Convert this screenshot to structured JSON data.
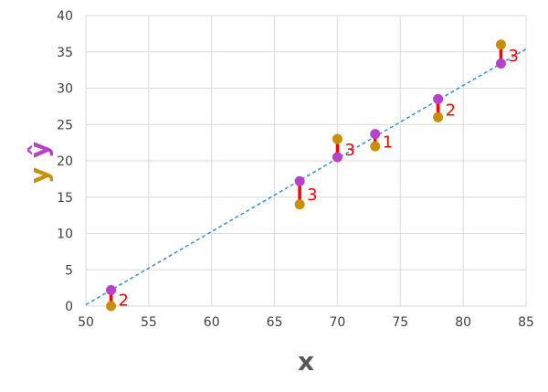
{
  "chart_data": {
    "type": "scatter",
    "xlabel": "x",
    "ylabel_parts": [
      {
        "text": "y",
        "color": "#C8900A"
      },
      {
        "text": "ŷ",
        "color": "#B940C8"
      }
    ],
    "xlim": [
      50,
      85
    ],
    "ylim": [
      0,
      40
    ],
    "xticks": [
      50,
      55,
      60,
      65,
      70,
      75,
      80,
      85
    ],
    "yticks": [
      0,
      5,
      10,
      15,
      20,
      25,
      30,
      35,
      40
    ],
    "grid": true,
    "colors": {
      "actual": "#C8900A",
      "predicted": "#B940C8",
      "residual": "#FF0000",
      "fit_line": "#2E8FD8"
    },
    "fit_line": {
      "x": [
        50,
        85
      ],
      "y": [
        0.2,
        35.4
      ],
      "style": "dashed"
    },
    "points": [
      {
        "x": 52,
        "y": 0,
        "yhat": 2.2,
        "label": "2"
      },
      {
        "x": 67,
        "y": 14,
        "yhat": 17.2,
        "label": "3"
      },
      {
        "x": 70,
        "y": 23,
        "yhat": 20.5,
        "label": "3"
      },
      {
        "x": 73,
        "y": 22,
        "yhat": 23.7,
        "label": "1"
      },
      {
        "x": 78,
        "y": 26,
        "yhat": 28.5,
        "label": "2"
      },
      {
        "x": 83,
        "y": 36,
        "yhat": 33.4,
        "label": "3"
      }
    ]
  }
}
